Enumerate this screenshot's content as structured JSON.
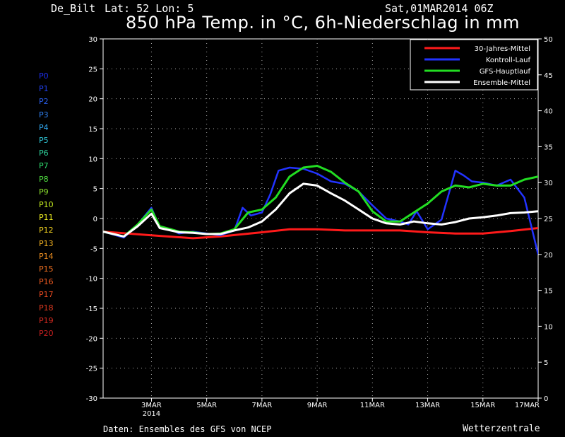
{
  "header": {
    "station": "De_Bilt",
    "coords": "Lat: 52 Lon: 5",
    "run": "Sat,01MAR2014 06Z",
    "title": "850 hPa Temp. in °C, 6h-Niederschlag in mm"
  },
  "footer": {
    "source": "Daten: Ensembles des GFS von NCEP",
    "brand": "Wetterzentrale"
  },
  "members": [
    {
      "label": "P0",
      "color": "#1e2ff0"
    },
    {
      "label": "P1",
      "color": "#2040f0"
    },
    {
      "label": "P2",
      "color": "#2a60f0"
    },
    {
      "label": "P3",
      "color": "#2f80f0"
    },
    {
      "label": "P4",
      "color": "#30a8f0"
    },
    {
      "label": "P5",
      "color": "#30c8d8"
    },
    {
      "label": "P6",
      "color": "#30d8a0"
    },
    {
      "label": "P7",
      "color": "#30e070"
    },
    {
      "label": "P8",
      "color": "#50e040"
    },
    {
      "label": "P9",
      "color": "#90e830"
    },
    {
      "label": "P10",
      "color": "#c8f020"
    },
    {
      "label": "P11",
      "color": "#f0f020"
    },
    {
      "label": "P12",
      "color": "#f0d020"
    },
    {
      "label": "P13",
      "color": "#f0b020"
    },
    {
      "label": "P14",
      "color": "#f09020"
    },
    {
      "label": "P15",
      "color": "#f07020"
    },
    {
      "label": "P16",
      "color": "#f05a20"
    },
    {
      "label": "P17",
      "color": "#e84a20"
    },
    {
      "label": "P18",
      "color": "#e03a20"
    },
    {
      "label": "P19",
      "color": "#d82a20"
    },
    {
      "label": "P20",
      "color": "#c82020"
    }
  ],
  "chart_data": {
    "type": "line",
    "x_ticks": [
      "3MAR",
      "5MAR",
      "7MAR",
      "9MAR",
      "11MAR",
      "13MAR",
      "15MAR",
      "17MAR"
    ],
    "x_tick_year": "2014",
    "x_range_days": [
      1.25,
      17
    ],
    "y_left": {
      "ticks": [
        30,
        25,
        20,
        15,
        10,
        5,
        0,
        -5,
        -10,
        -15,
        -20,
        -25,
        -30
      ],
      "ylim": [
        -30,
        30
      ]
    },
    "y_right": {
      "ticks": [
        50,
        45,
        40,
        35,
        30,
        25,
        20,
        15,
        10,
        5,
        0
      ],
      "ylim": [
        0,
        50
      ]
    },
    "legend": {
      "position": "top-right",
      "entries": [
        {
          "name": "30-Jahres-Mittel",
          "color": "#ff1a1a"
        },
        {
          "name": "Kontroll-Lauf",
          "color": "#2233ff"
        },
        {
          "name": "GFS-Hauptlauf",
          "color": "#22dd22"
        },
        {
          "name": "Ensemble-Mittel",
          "color": "#ffffff"
        }
      ]
    },
    "series": [
      {
        "name": "30-Jahres-Mittel",
        "color": "#ff1a1a",
        "width": 3,
        "x": [
          1.25,
          3,
          4.5,
          5.5,
          7,
          8,
          9,
          10,
          11,
          12,
          13,
          14,
          15,
          16,
          17
        ],
        "y": [
          -2.2,
          -2.8,
          -3.3,
          -3,
          -2.3,
          -1.8,
          -1.8,
          -2,
          -2,
          -2,
          -2.3,
          -2.5,
          -2.5,
          -2.1,
          -1.6
        ]
      },
      {
        "name": "Kontroll-Lauf",
        "color": "#2233ff",
        "width": 2.5,
        "x": [
          1.25,
          2,
          2.5,
          3,
          3.3,
          3.7,
          4,
          4.5,
          5,
          5.5,
          6,
          6.3,
          6.6,
          7,
          7.3,
          7.6,
          8,
          8.5,
          9,
          9.5,
          10,
          10.5,
          11,
          11.5,
          12,
          12.3,
          12.6,
          13,
          13.5,
          14,
          14.3,
          14.6,
          15,
          15.5,
          16,
          16.5,
          17
        ],
        "y": [
          -2.2,
          -3.2,
          -1,
          1.8,
          -1.5,
          -1.8,
          -2.5,
          -2.2,
          -2.5,
          -2.8,
          -2,
          1.8,
          0.5,
          1,
          4,
          8,
          8.5,
          8.3,
          7.5,
          6.2,
          5.8,
          4.5,
          2.2,
          0,
          -0.5,
          -1,
          1.2,
          -1.8,
          -0.2,
          8,
          7.2,
          6.2,
          6,
          5.5,
          6.5,
          3.5,
          -6
        ]
      },
      {
        "name": "GFS-Hauptlauf",
        "color": "#22dd22",
        "width": 3,
        "x": [
          1.25,
          2,
          2.5,
          3,
          3.3,
          3.7,
          4,
          4.5,
          5,
          5.5,
          6,
          6.5,
          7,
          7.5,
          8,
          8.5,
          9,
          9.5,
          10,
          10.5,
          11,
          11.5,
          12,
          12.5,
          13,
          13.5,
          14,
          14.5,
          15,
          15.5,
          16,
          16.5,
          17
        ],
        "y": [
          -2.2,
          -3,
          -1,
          1.5,
          -1.3,
          -1.8,
          -2.2,
          -2.3,
          -2.6,
          -2.5,
          -1.8,
          1,
          1.5,
          3.5,
          7,
          8.5,
          8.8,
          7.8,
          6,
          4.5,
          1.2,
          -0.5,
          -0.5,
          1,
          2.5,
          4.5,
          5.5,
          5.2,
          5.8,
          5.5,
          5.5,
          6.5,
          7
        ]
      },
      {
        "name": "Ensemble-Mittel",
        "color": "#ffffff",
        "width": 3,
        "x": [
          1.25,
          2,
          2.5,
          3,
          3.3,
          3.7,
          4,
          4.5,
          5,
          5.5,
          6,
          6.5,
          7,
          7.5,
          8,
          8.5,
          9,
          9.5,
          10,
          10.5,
          11,
          11.5,
          12,
          12.5,
          13,
          13.5,
          14,
          14.5,
          15,
          15.5,
          16,
          16.5,
          17
        ],
        "y": [
          -2.2,
          -3,
          -1.3,
          0.8,
          -1.6,
          -2,
          -2.3,
          -2.4,
          -2.6,
          -2.6,
          -2,
          -1.5,
          -0.5,
          1.5,
          4.2,
          5.8,
          5.5,
          4.2,
          3,
          1.5,
          0,
          -0.8,
          -1,
          -0.5,
          -0.8,
          -1,
          -0.6,
          0,
          0.2,
          0.5,
          0.9,
          1,
          1.2
        ]
      }
    ]
  }
}
